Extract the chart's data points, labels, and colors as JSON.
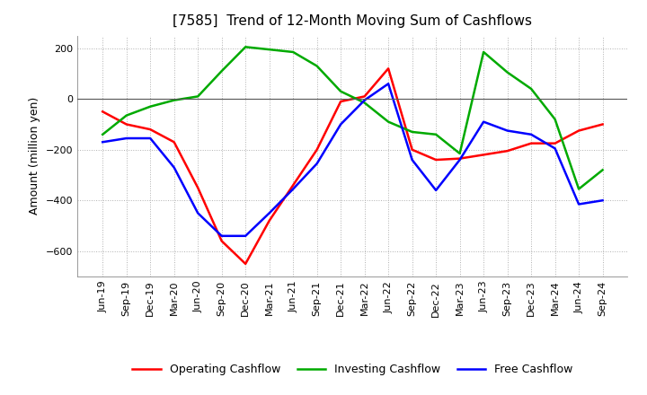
{
  "title": "[7585]  Trend of 12-Month Moving Sum of Cashflows",
  "ylabel": "Amount (million yen)",
  "x_labels": [
    "Jun-19",
    "Sep-19",
    "Dec-19",
    "Mar-20",
    "Jun-20",
    "Sep-20",
    "Dec-20",
    "Mar-21",
    "Jun-21",
    "Sep-21",
    "Dec-21",
    "Mar-22",
    "Jun-22",
    "Sep-22",
    "Dec-22",
    "Mar-23",
    "Jun-23",
    "Sep-23",
    "Dec-23",
    "Mar-24",
    "Jun-24",
    "Sep-24"
  ],
  "operating_cashflow": [
    -50,
    -100,
    -120,
    -170,
    -350,
    -560,
    -650,
    -480,
    -340,
    -200,
    -10,
    10,
    120,
    -200,
    -240,
    -235,
    -220,
    -205,
    -175,
    -175,
    -125,
    -100
  ],
  "investing_cashflow": [
    -140,
    -65,
    -30,
    -5,
    10,
    110,
    205,
    195,
    185,
    130,
    30,
    -15,
    -90,
    -130,
    -140,
    -215,
    185,
    105,
    40,
    -80,
    -355,
    -280
  ],
  "free_cashflow": [
    -170,
    -155,
    -155,
    -270,
    -450,
    -540,
    -540,
    -450,
    -355,
    -255,
    -100,
    -5,
    60,
    -240,
    -360,
    -240,
    -90,
    -125,
    -140,
    -195,
    -415,
    -400
  ],
  "operating_color": "#ff0000",
  "investing_color": "#00aa00",
  "free_color": "#0000ff",
  "ylim": [
    -700,
    250
  ],
  "yticks": [
    -600,
    -400,
    -200,
    0,
    200
  ],
  "background_color": "#ffffff",
  "grid_color": "#b0b0b0",
  "title_fontsize": 11,
  "axis_fontsize": 9,
  "tick_fontsize": 8,
  "legend_fontsize": 9,
  "linewidth": 1.8
}
